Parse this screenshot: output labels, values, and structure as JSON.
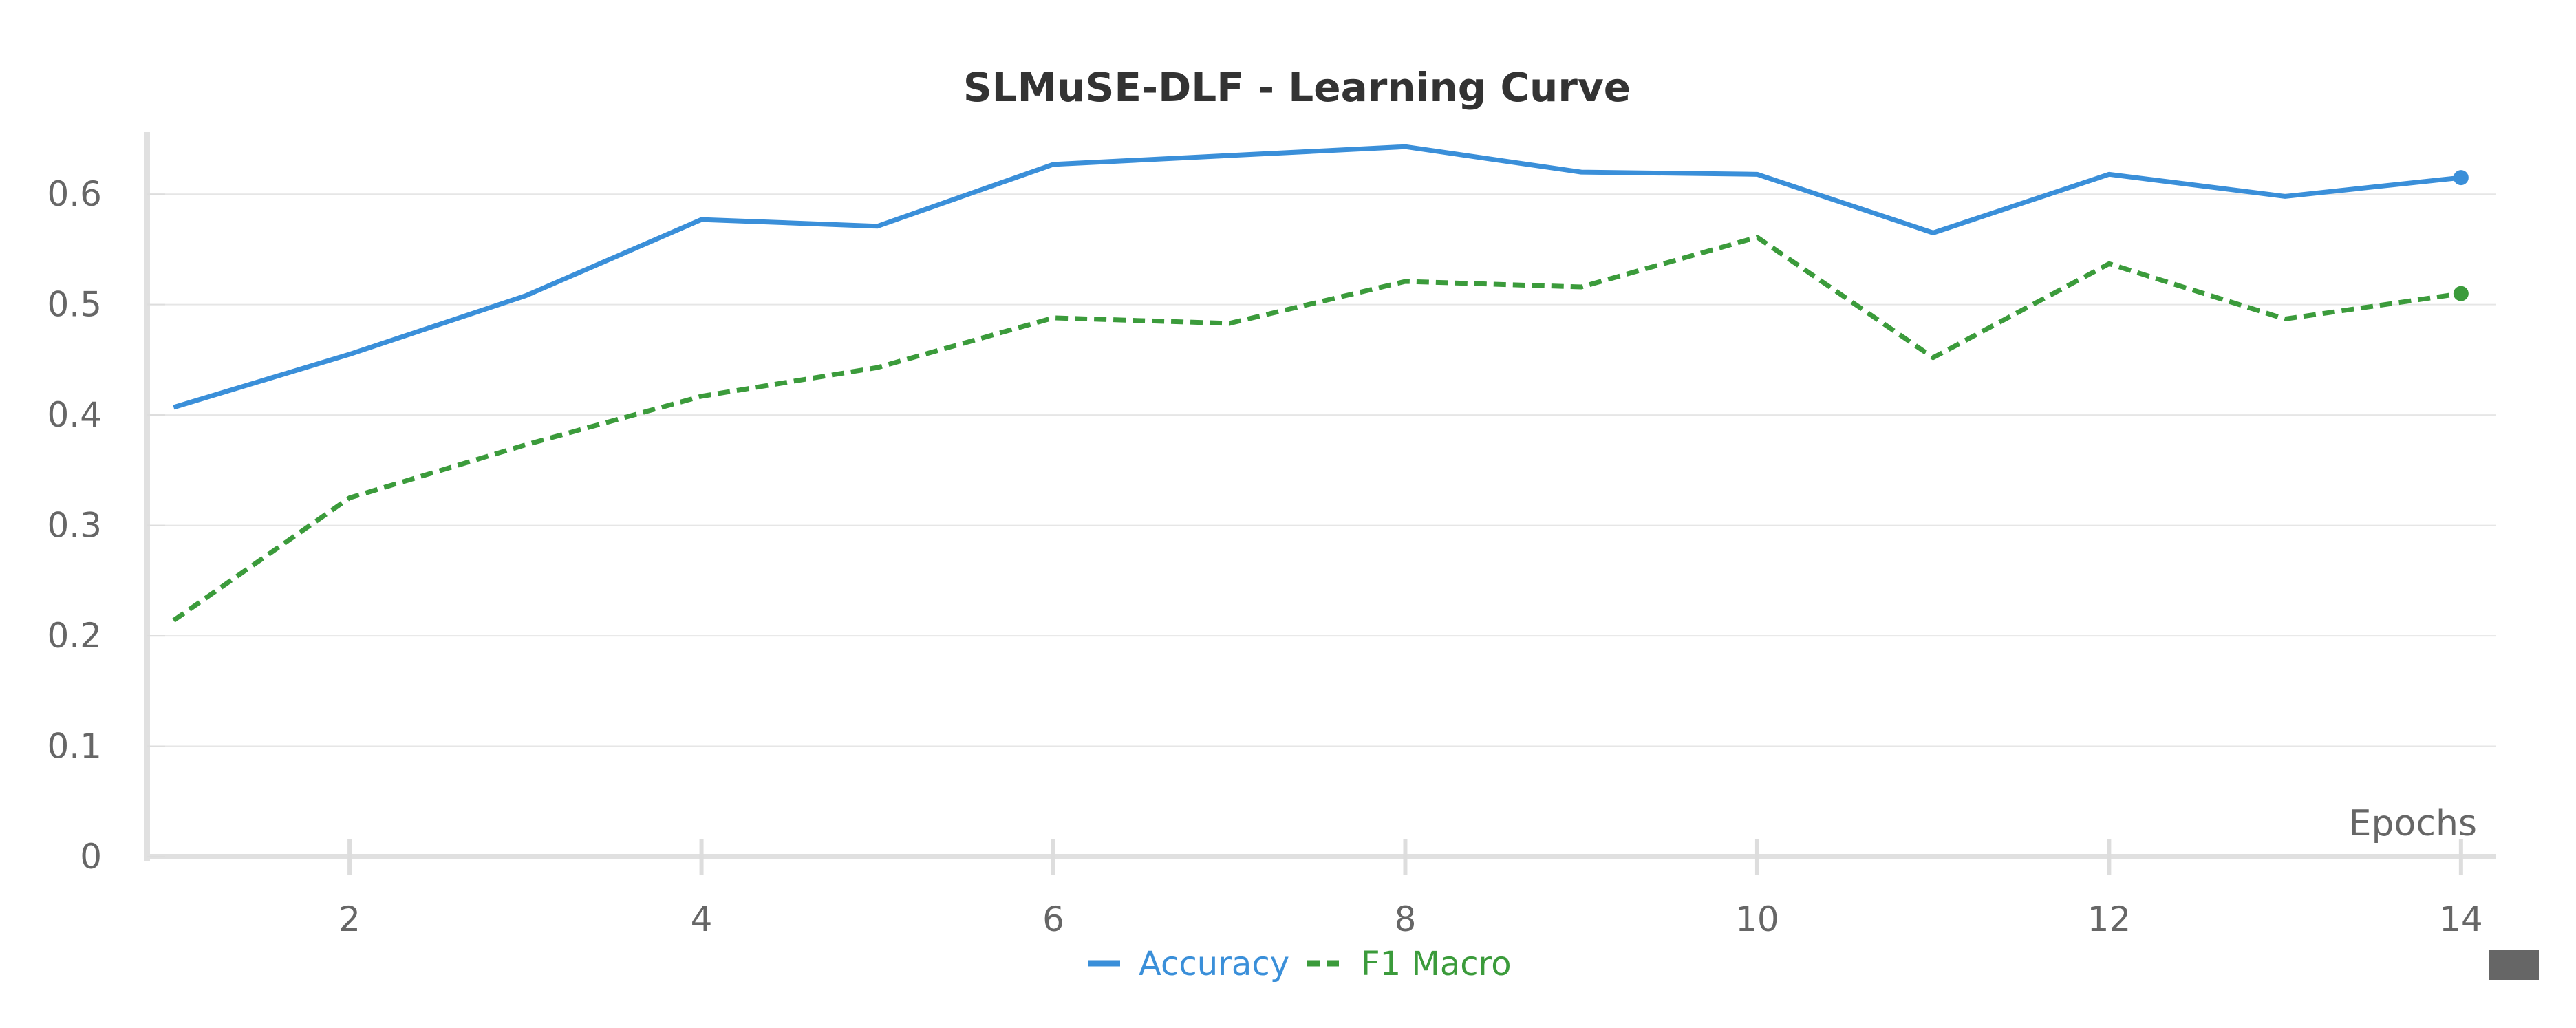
{
  "chart_data": {
    "type": "line",
    "title": "SLMuSE-DLF - Learning Curve",
    "xlabel": "Epochs",
    "ylabel": "",
    "x": [
      1,
      2,
      3,
      4,
      5,
      6,
      7,
      8,
      9,
      10,
      11,
      12,
      13,
      14
    ],
    "x_ticks": [
      2,
      4,
      6,
      8,
      10,
      12,
      14
    ],
    "y_ticks": [
      0,
      0.1,
      0.2,
      0.3,
      0.4,
      0.5,
      0.6
    ],
    "xlim": [
      0.85,
      14.2
    ],
    "ylim": [
      0,
      0.645
    ],
    "grid": true,
    "legend_position": "bottom-center",
    "series": [
      {
        "name": "Accuracy",
        "color": "#3a8fd9",
        "dash": "solid",
        "values": [
          0.407,
          0.455,
          0.508,
          0.577,
          0.571,
          0.627,
          0.635,
          0.643,
          0.62,
          0.618,
          0.565,
          0.618,
          0.598,
          0.615
        ]
      },
      {
        "name": "F1 Macro",
        "color": "#3b9b3b",
        "dash": "dashed",
        "values": [
          0.214,
          0.325,
          0.373,
          0.417,
          0.443,
          0.488,
          0.483,
          0.521,
          0.516,
          0.561,
          0.452,
          0.537,
          0.487,
          0.51
        ]
      }
    ]
  }
}
